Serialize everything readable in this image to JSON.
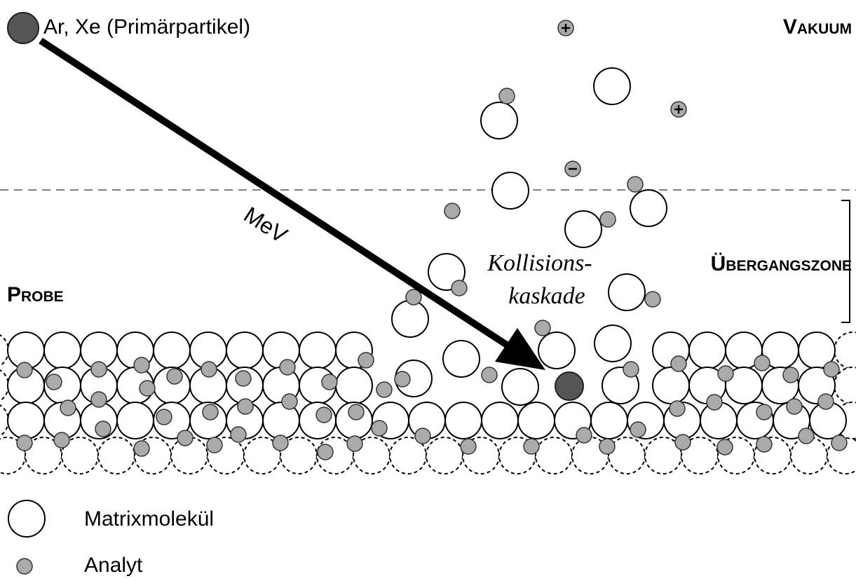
{
  "header": {
    "primary_particle": "Ar, Xe (Primärpartikel)",
    "vacuum": "Vakuum"
  },
  "labels": {
    "energy": "MeV",
    "cascade_line1": "Kollisions-",
    "cascade_line2": "kaskade",
    "transition_zone": "Übergangszone",
    "sample": "Probe"
  },
  "legend": {
    "matrix": "Matrixmolekül",
    "analyte": "Analyt"
  }
}
